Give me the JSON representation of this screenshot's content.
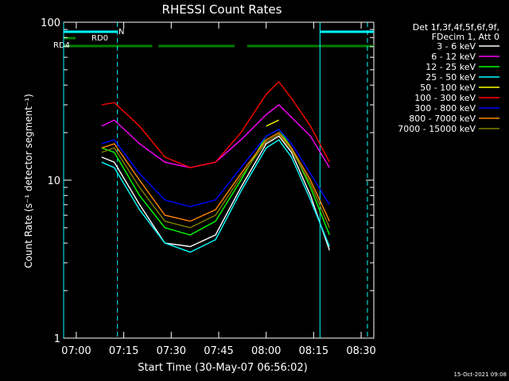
{
  "chart_data": {
    "type": "line",
    "title": "RHESSI Count Rates",
    "xlabel": "Start Time (30-May-07 06:56:02)",
    "ylabel": "Count Rate (s⁻¹ detector segment⁻¹)",
    "x_range_minutes": [
      "06:56",
      "08:34"
    ],
    "ylim": [
      1,
      100
    ],
    "yscale": "log",
    "x_ticks": [
      "07:00",
      "07:15",
      "07:30",
      "07:45",
      "08:00",
      "08:15",
      "08:30"
    ],
    "y_ticks": [
      "1",
      "10",
      "100"
    ],
    "legend_header": [
      "Det 1f,3f,4f,5f,6f,9f,",
      "FDecim 1, Att 0"
    ],
    "legend_placement": "right",
    "series": [
      {
        "name": "3 - 6 keV",
        "color": "#ffffff",
        "x": [
          "07:08",
          "07:12",
          "07:20",
          "07:28",
          "07:36",
          "07:44",
          "07:52",
          "08:00",
          "08:04",
          "08:08",
          "08:14",
          "08:20"
        ],
        "y": [
          14,
          13,
          7,
          4,
          3.8,
          4.5,
          9,
          17,
          19,
          15,
          8,
          3.6
        ]
      },
      {
        "name": "6 - 12 keV",
        "color": "#ff00ff",
        "x": [
          "07:08",
          "07:12",
          "07:20",
          "07:28",
          "07:36",
          "07:44",
          "07:52",
          "08:00",
          "08:04",
          "08:08",
          "08:14",
          "08:20"
        ],
        "y": [
          22,
          24,
          17,
          13,
          12,
          13,
          18,
          26,
          30,
          25,
          19,
          12
        ]
      },
      {
        "name": "12 - 25 keV",
        "color": "#00ff00",
        "x": [
          "07:08",
          "07:12",
          "07:20",
          "07:28",
          "07:36",
          "07:44",
          "07:52",
          "08:00",
          "08:04",
          "08:08",
          "08:14",
          "08:20"
        ],
        "y": [
          16,
          15,
          8,
          5,
          4.5,
          5.5,
          10,
          19,
          21,
          16,
          9,
          4.5
        ]
      },
      {
        "name": "25 - 50 keV",
        "color": "#00ffff",
        "x": [
          "07:08",
          "07:12",
          "07:20",
          "07:28",
          "07:36",
          "07:44",
          "07:52",
          "08:00",
          "08:04",
          "08:08",
          "08:14",
          "08:20"
        ],
        "y": [
          13,
          12,
          6.5,
          4,
          3.5,
          4.2,
          8.5,
          16,
          18,
          14,
          7.5,
          3.8
        ]
      },
      {
        "name": "50 - 100 keV",
        "color": "#ffff00",
        "x": [
          "08:00",
          "08:04"
        ],
        "y": [
          22,
          24
        ]
      },
      {
        "name": "100 - 300 keV",
        "color": "#ff0000",
        "x": [
          "07:08",
          "07:12",
          "07:20",
          "07:28",
          "07:36",
          "07:44",
          "07:52",
          "08:00",
          "08:04",
          "08:08",
          "08:14",
          "08:20"
        ],
        "y": [
          30,
          31,
          22,
          14,
          12,
          13,
          20,
          35,
          42,
          33,
          22,
          13
        ]
      },
      {
        "name": "300 - 800 keV",
        "color": "#0000ff",
        "x": [
          "07:08",
          "07:12",
          "07:20",
          "07:28",
          "07:36",
          "07:44",
          "07:52",
          "08:00",
          "08:04",
          "08:08",
          "08:14",
          "08:20"
        ],
        "y": [
          17,
          18,
          11,
          7.5,
          6.8,
          7.5,
          12,
          19,
          21,
          17,
          11,
          7
        ]
      },
      {
        "name": "800 - 7000 keV",
        "color": "#ff8800",
        "x": [
          "07:08",
          "07:12",
          "07:20",
          "07:28",
          "07:36",
          "07:44",
          "07:52",
          "08:00",
          "08:04",
          "08:08",
          "08:14",
          "08:20"
        ],
        "y": [
          16,
          17,
          10,
          6,
          5.5,
          6.5,
          11,
          18,
          20,
          16,
          10,
          5.5
        ]
      },
      {
        "name": "7000 - 15000 keV",
        "color": "#808000",
        "x": [
          "07:08",
          "07:12",
          "07:20",
          "07:28",
          "07:36",
          "07:44",
          "07:52",
          "08:00",
          "08:04",
          "08:08",
          "08:14",
          "08:20"
        ],
        "y": [
          15,
          16,
          9,
          5.5,
          5,
          6,
          10.5,
          17.5,
          19.5,
          15.5,
          9.5,
          5
        ]
      }
    ],
    "flags": [
      {
        "name": "RD0",
        "color": "#00ffff",
        "segments": [
          [
            "06:56",
            "07:13"
          ],
          [
            "08:17",
            "08:34"
          ]
        ]
      },
      {
        "name": "N",
        "color": "#00ffff",
        "segments": []
      },
      {
        "name": "RD4",
        "color": "#008000",
        "segments": [
          [
            "06:56",
            "07:24"
          ],
          [
            "07:26",
            "07:50"
          ],
          [
            "07:54",
            "08:16"
          ],
          [
            "08:16",
            "08:34"
          ]
        ]
      }
    ],
    "vlines": [
      {
        "x": "06:56",
        "color": "#00ffff",
        "style": "solid"
      },
      {
        "x": "07:13",
        "color": "#00ffff",
        "style": "dashed"
      },
      {
        "x": "08:17",
        "color": "#00ffff",
        "style": "solid"
      },
      {
        "x": "08:32",
        "color": "#00ffff",
        "style": "dashed"
      }
    ],
    "footer_timestamp": "15-Oct-2021 09:08"
  }
}
